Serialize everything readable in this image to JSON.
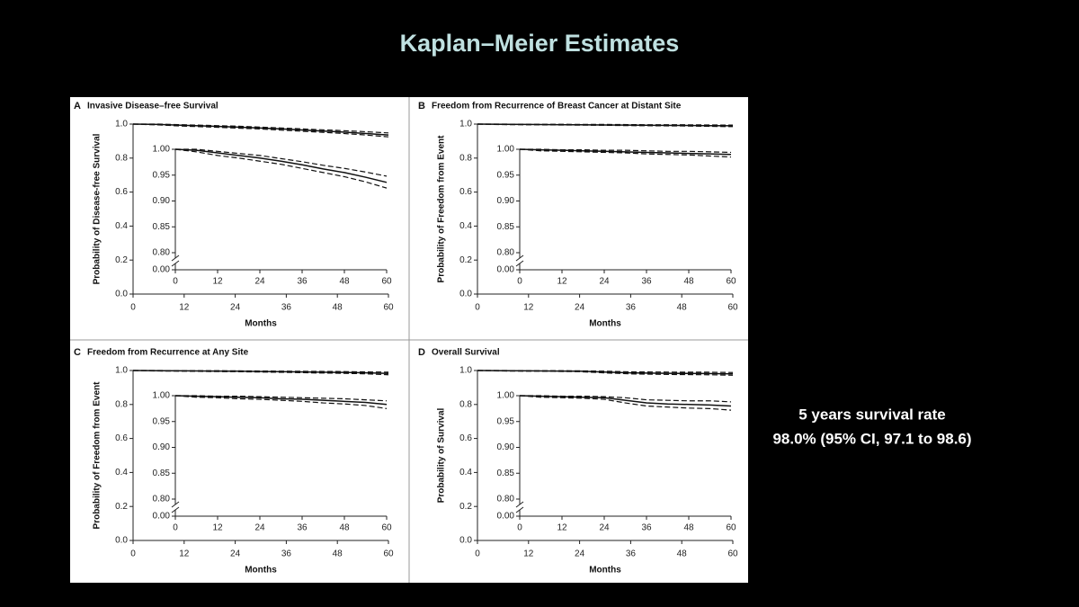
{
  "slide": {
    "title": "Kaplan–Meier Estimates",
    "notes": [
      "5 years survival rate",
      "98.0% (95% CI, 97.1 to 98.6)"
    ]
  },
  "chart_data": [
    {
      "type": "line",
      "panel_label": "A",
      "title": "Invasive Disease–free Survival",
      "ylabel": "Probability of Disease-free Survival",
      "xlabel": "Months",
      "x": [
        0,
        6,
        12,
        18,
        24,
        30,
        36,
        42,
        48,
        54,
        60
      ],
      "xlim": [
        0,
        60
      ],
      "xticks": [
        0,
        12,
        24,
        36,
        48,
        60
      ],
      "ylim": [
        0,
        1
      ],
      "yticks": [
        {
          "value": 0,
          "label": "0.0"
        },
        0.2,
        0.4,
        0.6,
        0.8,
        {
          "value": 1,
          "label": "1.0"
        }
      ],
      "inset_ylim": [
        0.8,
        1
      ],
      "inset_yticks": [
        {
          "value": 0,
          "label": "0.00"
        },
        {
          "value": 0.8,
          "label": "0.80"
        },
        0.85,
        {
          "value": 0.9,
          "label": "0.90"
        },
        0.95,
        {
          "value": 1,
          "label": "1.00"
        }
      ],
      "series": [
        {
          "color": "#111111",
          "style": "solid",
          "values": [
            1.0,
            0.998,
            0.993,
            0.988,
            0.983,
            0.977,
            0.97,
            0.962,
            0.955,
            0.946,
            0.936
          ]
        },
        {
          "color": "#111111",
          "style": "dashed",
          "values": [
            1.0,
            1.0,
            0.996,
            0.992,
            0.988,
            0.982,
            0.976,
            0.969,
            0.963,
            0.956,
            0.948
          ]
        },
        {
          "color": "#111111",
          "style": "dashed",
          "values": [
            1.0,
            0.995,
            0.988,
            0.983,
            0.977,
            0.971,
            0.963,
            0.955,
            0.947,
            0.937,
            0.925
          ]
        }
      ]
    },
    {
      "type": "line",
      "panel_label": "B",
      "title": "Freedom from Recurrence of Breast Cancer at Distant Site",
      "ylabel": "Probability of Freedom from Event",
      "xlabel": "Months",
      "x": [
        0,
        6,
        12,
        18,
        24,
        30,
        36,
        42,
        48,
        54,
        60
      ],
      "xlim": [
        0,
        60
      ],
      "xticks": [
        0,
        12,
        24,
        36,
        48,
        60
      ],
      "ylim": [
        0,
        1
      ],
      "yticks": [
        {
          "value": 0,
          "label": "0.0"
        },
        0.2,
        0.4,
        0.6,
        0.8,
        {
          "value": 1,
          "label": "1.0"
        }
      ],
      "inset_ylim": [
        0.8,
        1
      ],
      "inset_yticks": [
        {
          "value": 0,
          "label": "0.00"
        },
        {
          "value": 0.8,
          "label": "0.80"
        },
        0.85,
        {
          "value": 0.9,
          "label": "0.90"
        },
        0.95,
        {
          "value": 1,
          "label": "1.00"
        }
      ],
      "series": [
        {
          "color": "#111111",
          "style": "solid",
          "values": [
            1.0,
            0.999,
            0.998,
            0.997,
            0.996,
            0.995,
            0.994,
            0.993,
            0.992,
            0.991,
            0.99
          ]
        },
        {
          "color": "#111111",
          "style": "dashed",
          "values": [
            1.0,
            1.0,
            0.999,
            0.999,
            0.998,
            0.998,
            0.997,
            0.996,
            0.996,
            0.995,
            0.994
          ]
        },
        {
          "color": "#111111",
          "style": "dashed",
          "values": [
            1.0,
            0.997,
            0.996,
            0.995,
            0.994,
            0.993,
            0.991,
            0.99,
            0.989,
            0.987,
            0.985
          ]
        }
      ]
    },
    {
      "type": "line",
      "panel_label": "C",
      "title": "Freedom from Recurrence at Any Site",
      "ylabel": "Probability of Freedom from Event",
      "xlabel": "Months",
      "x": [
        0,
        6,
        12,
        18,
        24,
        30,
        36,
        42,
        48,
        54,
        60
      ],
      "xlim": [
        0,
        60
      ],
      "xticks": [
        0,
        12,
        24,
        36,
        48,
        60
      ],
      "ylim": [
        0,
        1
      ],
      "yticks": [
        {
          "value": 0,
          "label": "0.0"
        },
        0.2,
        0.4,
        0.6,
        0.8,
        {
          "value": 1,
          "label": "1.0"
        }
      ],
      "inset_ylim": [
        0.8,
        1
      ],
      "inset_yticks": [
        {
          "value": 0,
          "label": "0.00"
        },
        {
          "value": 0.8,
          "label": "0.80"
        },
        0.85,
        {
          "value": 0.9,
          "label": "0.90"
        },
        0.95,
        {
          "value": 1,
          "label": "1.00"
        }
      ],
      "series": [
        {
          "color": "#111111",
          "style": "solid",
          "values": [
            1.0,
            0.999,
            0.998,
            0.997,
            0.996,
            0.994,
            0.993,
            0.991,
            0.989,
            0.987,
            0.983
          ]
        },
        {
          "color": "#111111",
          "style": "dashed",
          "values": [
            1.0,
            1.0,
            0.999,
            0.999,
            0.998,
            0.997,
            0.996,
            0.995,
            0.994,
            0.992,
            0.99
          ]
        },
        {
          "color": "#111111",
          "style": "dashed",
          "values": [
            1.0,
            0.997,
            0.996,
            0.994,
            0.993,
            0.991,
            0.989,
            0.986,
            0.984,
            0.981,
            0.975
          ]
        }
      ]
    },
    {
      "type": "line",
      "panel_label": "D",
      "title": "Overall Survival",
      "ylabel": "Probability of Survival",
      "xlabel": "Months",
      "x": [
        0,
        6,
        12,
        18,
        24,
        30,
        36,
        42,
        48,
        54,
        60
      ],
      "xlim": [
        0,
        60
      ],
      "xticks": [
        0,
        12,
        24,
        36,
        48,
        60
      ],
      "ylim": [
        0,
        1
      ],
      "yticks": [
        {
          "value": 0,
          "label": "0.0"
        },
        0.2,
        0.4,
        0.6,
        0.8,
        {
          "value": 1,
          "label": "1.0"
        }
      ],
      "inset_ylim": [
        0.8,
        1
      ],
      "inset_yticks": [
        {
          "value": 0,
          "label": "0.00"
        },
        {
          "value": 0.8,
          "label": "0.80"
        },
        0.85,
        {
          "value": 0.9,
          "label": "0.90"
        },
        0.95,
        {
          "value": 1,
          "label": "1.00"
        }
      ],
      "series": [
        {
          "color": "#111111",
          "style": "solid",
          "values": [
            1.0,
            0.999,
            0.998,
            0.997,
            0.996,
            0.991,
            0.986,
            0.984,
            0.983,
            0.982,
            0.98
          ]
        },
        {
          "color": "#111111",
          "style": "dashed",
          "values": [
            1.0,
            1.0,
            0.999,
            0.999,
            0.998,
            0.996,
            0.992,
            0.991,
            0.99,
            0.99,
            0.988
          ]
        },
        {
          "color": "#111111",
          "style": "dashed",
          "values": [
            1.0,
            0.997,
            0.996,
            0.995,
            0.993,
            0.986,
            0.98,
            0.978,
            0.976,
            0.975,
            0.972
          ]
        }
      ]
    }
  ]
}
